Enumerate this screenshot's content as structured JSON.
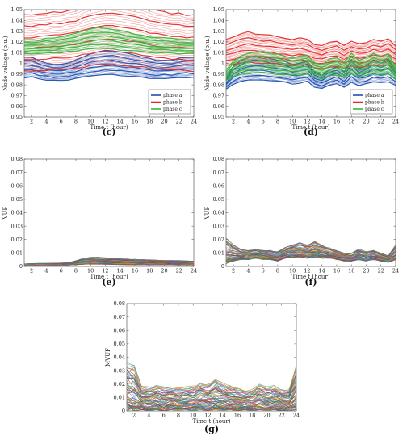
{
  "chart_data": [
    {
      "panel_label": "(c)",
      "type": "line",
      "xlabel": "Time t (hour)",
      "ylabel": "Node voltage (p.u.)",
      "xlim": [
        1,
        24
      ],
      "ylim": [
        0.95,
        1.05
      ],
      "xticks": [
        "2",
        "4",
        "6",
        "8",
        "10",
        "12",
        "14",
        "16",
        "18",
        "20",
        "22",
        "24"
      ],
      "yticks": [
        "0.95",
        "0.96",
        "0.97",
        "0.98",
        "0.99",
        "1",
        "1.01",
        "1.02",
        "1.03",
        "1.04",
        "1.05"
      ],
      "legend_position": "bottom-right",
      "series": [
        {
          "name": "phase a",
          "color": "#1f4fb0",
          "band": [
            0.987,
            1.006
          ],
          "shape": [
            0.0,
            0.0,
            -0.002,
            -0.004,
            -0.005,
            -0.005,
            -0.004,
            -0.002,
            0.0,
            0.002,
            0.003,
            0.004,
            0.004,
            0.003,
            0.002,
            0.001,
            0.0,
            -0.001,
            -0.002,
            -0.002,
            -0.002,
            -0.001,
            0.0,
            0.0
          ]
        },
        {
          "name": "phase b",
          "color": "#e32b2b",
          "band": [
            0.993,
            1.045
          ],
          "shape": [
            0.0,
            0.0,
            0.001,
            0.001,
            0.002,
            0.002,
            0.003,
            0.004,
            0.006,
            0.008,
            0.009,
            0.01,
            0.01,
            0.009,
            0.008,
            0.007,
            0.006,
            0.004,
            0.003,
            0.002,
            0.001,
            0.001,
            0.0,
            0.0
          ]
        },
        {
          "name": "phase c",
          "color": "#3cb43c",
          "band": [
            1.009,
            1.022
          ],
          "shape": [
            0.0,
            0.0,
            0.0,
            0.001,
            0.001,
            0.002,
            0.003,
            0.004,
            0.006,
            0.007,
            0.008,
            0.008,
            0.007,
            0.006,
            0.005,
            0.004,
            0.003,
            0.002,
            0.001,
            0.001,
            0.001,
            0.0,
            0.0,
            0.0
          ]
        }
      ]
    },
    {
      "panel_label": "(d)",
      "type": "line",
      "xlabel": "Time t (hour)",
      "ylabel": "Node voltage (p.u.)",
      "xlim": [
        1,
        24
      ],
      "ylim": [
        0.95,
        1.05
      ],
      "xticks": [
        "2",
        "4",
        "6",
        "8",
        "10",
        "12",
        "14",
        "16",
        "18",
        "20",
        "22",
        "24"
      ],
      "yticks": [
        "0.95",
        "0.96",
        "0.97",
        "0.98",
        "0.99",
        "1",
        "1.01",
        "1.02",
        "1.03",
        "1.04",
        "1.05"
      ],
      "legend_position": "bottom-right",
      "series": [
        {
          "name": "phase a",
          "color": "#1f4fb0",
          "band": [
            0.983,
            1.003
          ],
          "shape": [
            -0.012,
            -0.004,
            0.0,
            0.002,
            0.003,
            0.002,
            0.001,
            0.0,
            -0.001,
            -0.003,
            -0.002,
            0.0,
            -0.008,
            -0.01,
            -0.006,
            -0.004,
            -0.008,
            0.0,
            -0.006,
            -0.004,
            0.0,
            -0.002,
            0.0,
            -0.006
          ]
        },
        {
          "name": "phase b",
          "color": "#e32b2b",
          "band": [
            0.998,
            1.022
          ],
          "shape": [
            0.0,
            0.002,
            0.004,
            0.005,
            0.004,
            0.003,
            0.003,
            0.002,
            0.001,
            0.0,
            0.001,
            0.0,
            -0.003,
            -0.004,
            -0.002,
            -0.001,
            -0.004,
            -0.001,
            -0.003,
            -0.002,
            0.0,
            -0.001,
            0.001,
            -0.004
          ]
        },
        {
          "name": "phase c",
          "color": "#3cb43c",
          "band": [
            0.99,
            1.008
          ],
          "shape": [
            -0.01,
            -0.004,
            -0.001,
            0.001,
            0.002,
            0.002,
            0.001,
            0.0,
            -0.001,
            -0.002,
            -0.001,
            0.0,
            -0.005,
            -0.007,
            -0.003,
            -0.002,
            -0.005,
            0.001,
            -0.004,
            -0.002,
            0.001,
            -0.001,
            0.001,
            -0.008
          ]
        }
      ]
    },
    {
      "panel_label": "(e)",
      "type": "line",
      "xlabel": "Time t (hour)",
      "ylabel": "VUF",
      "xlim": [
        1,
        24
      ],
      "ylim": [
        0,
        0.08
      ],
      "xticks": [
        "2",
        "4",
        "6",
        "8",
        "10",
        "12",
        "14",
        "16",
        "18",
        "20",
        "22",
        "24"
      ],
      "yticks": [
        "0",
        "0.01",
        "0.02",
        "0.03",
        "0.04",
        "0.05",
        "0.06",
        "0.07",
        "0.08"
      ],
      "series_count": 60,
      "range_low": [
        0.0005,
        0.0006,
        0.0006,
        0.0007,
        0.0007,
        0.0008,
        0.0009,
        0.0012,
        0.0015,
        0.0016,
        0.0016,
        0.0015,
        0.0014,
        0.0013,
        0.0012,
        0.0011,
        0.0011,
        0.0011,
        0.0011,
        0.0011,
        0.0011,
        0.001,
        0.001,
        0.001
      ],
      "range_high": [
        0.002,
        0.0022,
        0.0024,
        0.0024,
        0.0025,
        0.0026,
        0.003,
        0.0045,
        0.006,
        0.0068,
        0.007,
        0.0066,
        0.006,
        0.0058,
        0.0056,
        0.0054,
        0.0052,
        0.005,
        0.0048,
        0.0046,
        0.0045,
        0.0044,
        0.0042,
        0.004
      ]
    },
    {
      "panel_label": "(f)",
      "type": "line",
      "xlabel": "Time t (hour)",
      "ylabel": "VUF",
      "xlim": [
        1,
        24
      ],
      "ylim": [
        0,
        0.08
      ],
      "xticks": [
        "2",
        "4",
        "6",
        "8",
        "10",
        "12",
        "14",
        "16",
        "18",
        "20",
        "22",
        "24"
      ],
      "yticks": [
        "0",
        "0.01",
        "0.02",
        "0.03",
        "0.04",
        "0.05",
        "0.06",
        "0.07",
        "0.08"
      ],
      "series_count": 60,
      "range_low": [
        0.002,
        0.004,
        0.005,
        0.005,
        0.006,
        0.005,
        0.005,
        0.004,
        0.006,
        0.007,
        0.007,
        0.006,
        0.007,
        0.006,
        0.006,
        0.005,
        0.004,
        0.004,
        0.005,
        0.004,
        0.005,
        0.004,
        0.003,
        0.005
      ],
      "range_high": [
        0.021,
        0.016,
        0.013,
        0.012,
        0.013,
        0.012,
        0.012,
        0.011,
        0.014,
        0.016,
        0.018,
        0.016,
        0.019,
        0.016,
        0.014,
        0.012,
        0.01,
        0.01,
        0.013,
        0.011,
        0.012,
        0.01,
        0.008,
        0.016
      ]
    },
    {
      "panel_label": "(g)",
      "type": "line",
      "xlabel": "Time t (hour)",
      "ylabel": "MVUF",
      "xlim": [
        1,
        24
      ],
      "ylim": [
        0,
        0.08
      ],
      "xticks": [
        "2",
        "4",
        "6",
        "8",
        "10",
        "12",
        "14",
        "16",
        "18",
        "20",
        "22",
        "24"
      ],
      "yticks": [
        "0",
        "0.01",
        "0.02",
        "0.03",
        "0.04",
        "0.05",
        "0.06",
        "0.07",
        "0.08"
      ],
      "series_count": 70,
      "range_low": [
        0.0,
        0.0,
        0.001,
        0.0,
        0.001,
        0.0,
        0.001,
        0.0,
        0.001,
        0.0,
        0.001,
        0.0,
        0.001,
        0.0,
        0.001,
        0.0,
        0.001,
        0.0,
        0.001,
        0.0,
        0.001,
        0.0,
        0.0,
        0.001
      ],
      "range_high": [
        0.036,
        0.034,
        0.019,
        0.018,
        0.019,
        0.018,
        0.018,
        0.017,
        0.018,
        0.019,
        0.021,
        0.02,
        0.024,
        0.021,
        0.019,
        0.017,
        0.015,
        0.016,
        0.02,
        0.018,
        0.019,
        0.016,
        0.016,
        0.034
      ]
    }
  ]
}
